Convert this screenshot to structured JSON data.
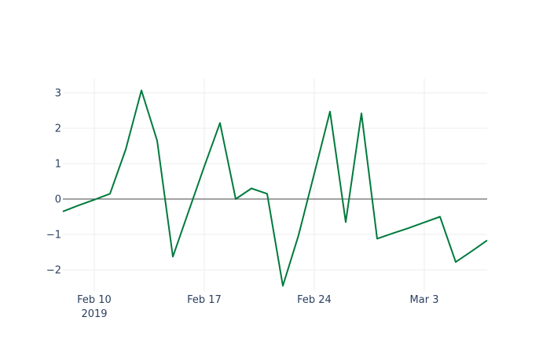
{
  "chart_data": {
    "type": "line",
    "title": "",
    "xlabel": "",
    "ylabel": "",
    "x_ticks": [
      {
        "date": "2019-02-10",
        "label": "Feb 10",
        "sublabel": "2019"
      },
      {
        "date": "2019-02-17",
        "label": "Feb 17",
        "sublabel": ""
      },
      {
        "date": "2019-02-24",
        "label": "Feb 24",
        "sublabel": ""
      },
      {
        "date": "2019-03-03",
        "label": "Mar 3",
        "sublabel": ""
      }
    ],
    "y_ticks": [
      {
        "value": -2,
        "label": "−2"
      },
      {
        "value": -1,
        "label": "−1"
      },
      {
        "value": 0,
        "label": "0"
      },
      {
        "value": 1,
        "label": "1"
      },
      {
        "value": 2,
        "label": "2"
      },
      {
        "value": 3,
        "label": "3"
      }
    ],
    "xlim": [
      "2019-02-08",
      "2019-03-07"
    ],
    "ylim": [
      -2.6,
      3.4
    ],
    "grid": true,
    "zeroline": true,
    "series": [
      {
        "color": "#007a3d",
        "x": [
          "2019-02-08",
          "2019-02-09",
          "2019-02-10",
          "2019-02-11",
          "2019-02-12",
          "2019-02-13",
          "2019-02-14",
          "2019-02-15",
          "2019-02-16",
          "2019-02-17",
          "2019-02-18",
          "2019-02-19",
          "2019-02-20",
          "2019-02-21",
          "2019-02-22",
          "2019-02-23",
          "2019-02-24",
          "2019-02-25",
          "2019-02-26",
          "2019-02-27",
          "2019-02-28",
          "2019-03-01",
          "2019-03-02",
          "2019-03-03",
          "2019-03-04",
          "2019-03-05",
          "2019-03-06",
          "2019-03-07"
        ],
        "y": [
          -0.35,
          -0.18,
          -0.02,
          0.15,
          1.4,
          3.07,
          1.65,
          -1.63,
          -0.35,
          0.92,
          2.15,
          0.0,
          0.3,
          0.15,
          -2.45,
          -1.02,
          0.72,
          2.47,
          -0.65,
          2.42,
          -1.12,
          -0.97,
          -0.82,
          -0.66,
          -0.5,
          -1.78,
          -1.48,
          -1.17
        ]
      }
    ]
  }
}
